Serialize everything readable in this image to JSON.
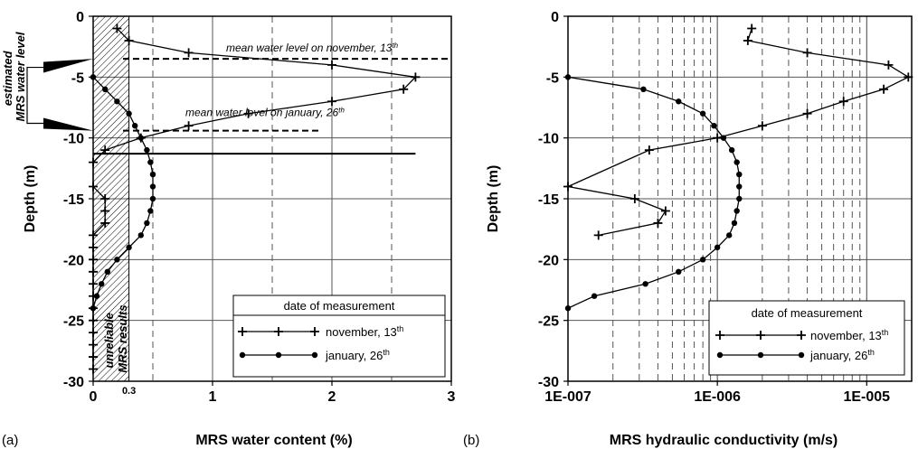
{
  "colors": {
    "ink": "#000000",
    "hatch_fill": "#ffffff"
  },
  "chart_data": [
    {
      "panel_label": "(a)",
      "type": "line",
      "xlabel": "MRS water content (%)",
      "ylabel": "Depth (m)",
      "xlim": [
        0,
        3
      ],
      "ylim": [
        -30,
        0
      ],
      "x_ticks": [
        0,
        1,
        2,
        3
      ],
      "x_tick_labels": [
        "0",
        "1",
        "2",
        "3"
      ],
      "extra_x_tick": {
        "value": 0.3,
        "label": "0.3"
      },
      "y_ticks": [
        0,
        -5,
        -10,
        -15,
        -20,
        -25,
        -30
      ],
      "y_tick_labels": [
        "0",
        "-5",
        "-10",
        "-15",
        "-20",
        "-25",
        "-30"
      ],
      "grid": "horizontal solid every 5 m; vertical dashed every 0.5 %",
      "unreliable_zone": {
        "x_range": [
          0,
          0.3
        ],
        "label_line1": "unreliable",
        "label_line2": "MRS results"
      },
      "water_levels": [
        {
          "label": "mean water level on november, 13",
          "suffix": "th",
          "depth": -3.5
        },
        {
          "label": "mean water level on january, 26",
          "suffix": "th",
          "depth": -9.4
        }
      ],
      "estimated_level_label_line1": "estimated",
      "estimated_level_label_line2": "MRS water level",
      "solid_threshold_depth": -11.3,
      "legend": {
        "title": "date of measurement",
        "position": "bottom-right"
      },
      "series": [
        {
          "name": "november, 13",
          "name_suffix": "th",
          "marker": "plus",
          "x": [
            0.2,
            0.3,
            0.8,
            2.0,
            2.7,
            2.6,
            2.0,
            1.3,
            0.8,
            0.4,
            0.1,
            0.0,
            0.0,
            0.1,
            0.1,
            0.1,
            0.0,
            0.0,
            0.0,
            0.0,
            0.0,
            0.0,
            0.0,
            0.0,
            0.0,
            0.0,
            0.0,
            0.0
          ],
          "y": [
            -1,
            -2,
            -3,
            -4,
            -5,
            -6,
            -7,
            -8,
            -9,
            -10,
            -11,
            -12,
            -14,
            -15,
            -16,
            -17,
            -18,
            -19,
            -20,
            -21,
            -22,
            -23,
            -24,
            -25,
            -26,
            -27,
            -28,
            -29
          ]
        },
        {
          "name": "january, 26",
          "name_suffix": "th",
          "marker": "circle",
          "x": [
            0.0,
            0.1,
            0.2,
            0.3,
            0.35,
            0.4,
            0.45,
            0.48,
            0.5,
            0.5,
            0.5,
            0.48,
            0.45,
            0.4,
            0.3,
            0.2,
            0.12,
            0.07,
            0.03,
            0.0
          ],
          "y": [
            -5,
            -6,
            -7,
            -8,
            -9,
            -10,
            -11,
            -12,
            -13,
            -14,
            -15,
            -16,
            -17,
            -18,
            -19,
            -20,
            -21,
            -22,
            -23,
            -24
          ]
        }
      ]
    },
    {
      "panel_label": "(b)",
      "type": "line",
      "xlabel": "MRS hydraulic conductivity (m/s)",
      "ylabel": "Depth (m)",
      "x_scale": "log",
      "xlim": [
        1e-07,
        2e-05
      ],
      "x_ticks": [
        1e-07,
        1e-06,
        1e-05
      ],
      "x_tick_labels": [
        "1E-007",
        "1E-006",
        "1E-005"
      ],
      "ylim": [
        -30,
        0
      ],
      "y_ticks": [
        0,
        -5,
        -10,
        -15,
        -20,
        -25,
        -30
      ],
      "y_tick_labels": [
        "0",
        "-5",
        "-10",
        "-15",
        "-20",
        "-25",
        "-30"
      ],
      "grid": "horizontal solid every 5 m; vertical solid at decades, dashed at minor decade ticks",
      "legend": {
        "title": "date of measurement",
        "position": "bottom-right"
      },
      "series": [
        {
          "name": "november, 13",
          "name_suffix": "th",
          "marker": "plus",
          "x": [
            1.7e-06,
            1.6e-06,
            4e-06,
            1.4e-05,
            1.9e-05,
            1.3e-05,
            7e-06,
            4e-06,
            2e-06,
            1e-06,
            3.5e-07,
            1e-07,
            2.8e-07,
            4.5e-07,
            4e-07,
            1.6e-07
          ],
          "y": [
            -1,
            -2,
            -3,
            -4,
            -5,
            -6,
            -7,
            -8,
            -9,
            -10,
            -11,
            -14,
            -15,
            -16,
            -17,
            -18
          ]
        },
        {
          "name": "january, 26",
          "name_suffix": "th",
          "marker": "circle",
          "x": [
            1e-07,
            3.2e-07,
            5.5e-07,
            8e-07,
            9.5e-07,
            1.1e-06,
            1.25e-06,
            1.35e-06,
            1.4e-06,
            1.4e-06,
            1.4e-06,
            1.35e-06,
            1.3e-06,
            1.2e-06,
            1e-06,
            8e-07,
            5.5e-07,
            3.3e-07,
            1.5e-07,
            1e-07
          ],
          "y": [
            -5,
            -6,
            -7,
            -8,
            -9,
            -10,
            -11,
            -12,
            -13,
            -14,
            -15,
            -16,
            -17,
            -18,
            -19,
            -20,
            -21,
            -22,
            -23,
            -24
          ]
        }
      ]
    }
  ]
}
